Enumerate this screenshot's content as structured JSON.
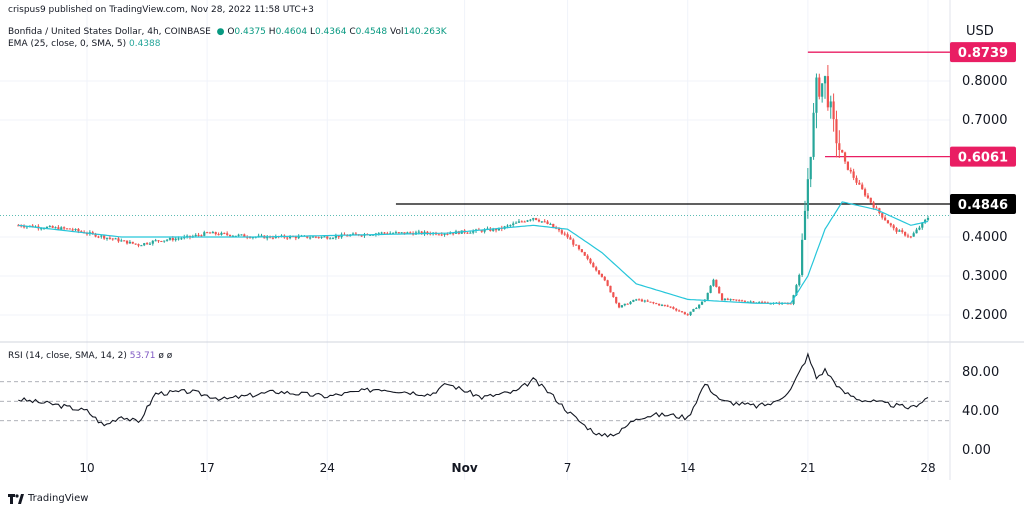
{
  "header": {
    "published": "crispus9 published on TradingView.com, Nov 28, 2022 11:58 UTC+3",
    "symbol": "Bonfida / United States Dollar, 4h, COINBASE",
    "o_label": "O",
    "o_value": "0.4375",
    "h_label": "H",
    "h_value": "0.4604",
    "l_label": "L",
    "l_value": "0.4364",
    "c_label": "C",
    "c_value": "0.4548",
    "vol_label": "Vol",
    "vol_value": "140.263K",
    "ema_label": "EMA (25, close, 0, SMA, 5)",
    "ema_value": "0.4388"
  },
  "rsi": {
    "label": "RSI (14, close, SMA, 14, 2)",
    "value": "53.71",
    "extra": "ø  ø"
  },
  "footer": {
    "brand": "TradingView"
  },
  "colors": {
    "up": "#26a69a",
    "down": "#ef5350",
    "ema": "#26c6da",
    "rsi": "#131722",
    "marker": "#e91e63",
    "black": "#000000"
  },
  "chart_data": [
    {
      "type": "candlestick",
      "currency_label": "USD",
      "y_ticks": [
        "0.2000",
        "0.3000",
        "0.4000",
        "0.7000",
        "0.8000"
      ],
      "x_ticks": [
        "10",
        "17",
        "24",
        "Nov",
        "7",
        "14",
        "21",
        "28"
      ],
      "ylim": [
        0.17,
        0.93
      ],
      "price_labels": [
        {
          "value": "0.8739",
          "style": "marker"
        },
        {
          "value": "0.6061",
          "style": "marker"
        },
        {
          "value": "0.4846",
          "style": "black"
        }
      ],
      "horizontal_lines": [
        {
          "price": 0.8739,
          "from_x": "Nov 21",
          "style": "marker"
        },
        {
          "price": 0.6061,
          "from_x": "Nov 22",
          "style": "marker"
        },
        {
          "price": 0.4846,
          "from_x": "Oct 28",
          "style": "black"
        }
      ],
      "close_series": {
        "x_start": "Oct 6",
        "x_end": "Nov 28",
        "anchors": [
          [
            "Oct 6",
            0.43
          ],
          [
            "Oct 9",
            0.42
          ],
          [
            "Oct 11",
            0.4
          ],
          [
            "Oct 13",
            0.38
          ],
          [
            "Oct 14",
            0.39
          ],
          [
            "Oct 16",
            0.4
          ],
          [
            "Oct 17",
            0.41
          ],
          [
            "Oct 20",
            0.4
          ],
          [
            "Oct 24",
            0.4
          ],
          [
            "Oct 27",
            0.41
          ],
          [
            "Oct 31",
            0.41
          ],
          [
            "Nov 3",
            0.42
          ],
          [
            "Nov 5",
            0.45
          ],
          [
            "Nov 6",
            0.43
          ],
          [
            "Nov 7",
            0.4
          ],
          [
            "Nov 9",
            0.3
          ],
          [
            "Nov 10",
            0.22
          ],
          [
            "Nov 11",
            0.24
          ],
          [
            "Nov 13",
            0.22
          ],
          [
            "Nov 14",
            0.2
          ],
          [
            "Nov 15",
            0.24
          ],
          [
            "Nov 15.5",
            0.29
          ],
          [
            "Nov 16",
            0.24
          ],
          [
            "Nov 19",
            0.23
          ],
          [
            "Nov 20",
            0.23
          ],
          [
            "Nov 20.5",
            0.3
          ],
          [
            "Nov 21",
            0.55
          ],
          [
            "Nov 21.5",
            0.78
          ],
          [
            "Nov 22",
            0.8
          ],
          [
            "Nov 22.5",
            0.68
          ],
          [
            "Nov 23",
            0.6
          ],
          [
            "Nov 24",
            0.53
          ],
          [
            "Nov 25",
            0.47
          ],
          [
            "Nov 26",
            0.42
          ],
          [
            "Nov 27",
            0.4
          ],
          [
            "Nov 28",
            0.45
          ]
        ]
      },
      "ema_series": {
        "anchors": [
          [
            "Oct 6",
            0.43
          ],
          [
            "Oct 12",
            0.4
          ],
          [
            "Oct 20",
            0.4
          ],
          [
            "Oct 31",
            0.41
          ],
          [
            "Nov 5",
            0.43
          ],
          [
            "Nov 7",
            0.42
          ],
          [
            "Nov 9",
            0.36
          ],
          [
            "Nov 11",
            0.28
          ],
          [
            "Nov 14",
            0.24
          ],
          [
            "Nov 18",
            0.23
          ],
          [
            "Nov 20",
            0.23
          ],
          [
            "Nov 21",
            0.3
          ],
          [
            "Nov 22",
            0.42
          ],
          [
            "Nov 23",
            0.49
          ],
          [
            "Nov 25",
            0.47
          ],
          [
            "Nov 27",
            0.43
          ],
          [
            "Nov 28",
            0.44
          ]
        ]
      }
    },
    {
      "type": "line",
      "name": "RSI",
      "y_ticks": [
        "0.00",
        "40.00",
        "80.00"
      ],
      "ylim": [
        0,
        100
      ],
      "bands": [
        70,
        50,
        30
      ],
      "anchors": [
        [
          "Oct 6",
          52
        ],
        [
          "Oct 8",
          47
        ],
        [
          "Oct 10",
          40
        ],
        [
          "Oct 11",
          25
        ],
        [
          "Oct 12",
          35
        ],
        [
          "Oct 13",
          28
        ],
        [
          "Oct 14",
          58
        ],
        [
          "Oct 16",
          60
        ],
        [
          "Oct 18",
          52
        ],
        [
          "Oct 21",
          60
        ],
        [
          "Oct 24",
          55
        ],
        [
          "Oct 27",
          63
        ],
        [
          "Oct 30",
          57
        ],
        [
          "Oct 31",
          68
        ],
        [
          "Nov 2",
          54
        ],
        [
          "Nov 4",
          60
        ],
        [
          "Nov 5",
          72
        ],
        [
          "Nov 6",
          58
        ],
        [
          "Nov 7",
          40
        ],
        [
          "Nov 8",
          25
        ],
        [
          "Nov 9",
          14
        ],
        [
          "Nov 10",
          18
        ],
        [
          "Nov 11",
          33
        ],
        [
          "Nov 12",
          36
        ],
        [
          "Nov 13",
          36
        ],
        [
          "Nov 14",
          33
        ],
        [
          "Nov 15",
          68
        ],
        [
          "Nov 16",
          50
        ],
        [
          "Nov 18",
          45
        ],
        [
          "Nov 19",
          48
        ],
        [
          "Nov 20",
          62
        ],
        [
          "Nov 21",
          97
        ],
        [
          "Nov 21.5",
          74
        ],
        [
          "Nov 22",
          82
        ],
        [
          "Nov 23",
          60
        ],
        [
          "Nov 24",
          52
        ],
        [
          "Nov 26",
          46
        ],
        [
          "Nov 27",
          43
        ],
        [
          "Nov 28",
          54
        ]
      ]
    }
  ]
}
